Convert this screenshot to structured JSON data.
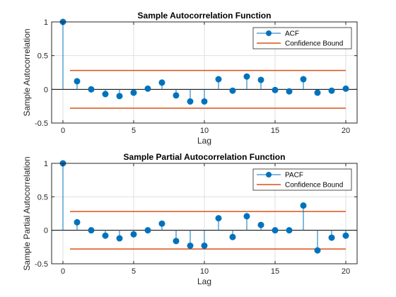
{
  "chart_data": [
    {
      "type": "stem",
      "title": "Sample Autocorrelation Function",
      "xlabel": "Lag",
      "ylabel": "Sample Autocorrelation",
      "xlim": [
        -0.8,
        20.8
      ],
      "ylim": [
        -0.5,
        1
      ],
      "xticks": [
        "0",
        "5",
        "10",
        "15",
        "20"
      ],
      "xtick_values": [
        0,
        5,
        10,
        15,
        20
      ],
      "yticks": [
        "-0.5",
        "0",
        "0.5",
        "1"
      ],
      "ytick_values": [
        -0.5,
        0,
        0.5,
        1
      ],
      "grid": true,
      "legend_position": "top-right",
      "x": [
        0,
        1,
        2,
        3,
        4,
        5,
        6,
        7,
        8,
        9,
        10,
        11,
        12,
        13,
        14,
        15,
        16,
        17,
        18,
        19,
        20
      ],
      "series": [
        {
          "name": "ACF",
          "color": "#0072BD",
          "values": [
            1,
            0.12,
            0.0,
            -0.07,
            -0.1,
            -0.05,
            0.01,
            0.1,
            -0.09,
            -0.18,
            -0.18,
            0.15,
            -0.02,
            0.19,
            0.14,
            -0.01,
            -0.03,
            0.15,
            -0.05,
            -0.02,
            0.01
          ]
        }
      ],
      "confidence_bound": {
        "name": "Confidence Bound",
        "color": "#D95319",
        "value": 0.28
      }
    },
    {
      "type": "stem",
      "title": "Sample Partial Autocorrelation Function",
      "xlabel": "Lag",
      "ylabel": "Sample Partial Autocorrelation",
      "xlim": [
        -0.8,
        20.8
      ],
      "ylim": [
        -0.5,
        1
      ],
      "xticks": [
        "0",
        "5",
        "10",
        "15",
        "20"
      ],
      "xtick_values": [
        0,
        5,
        10,
        15,
        20
      ],
      "yticks": [
        "-0.5",
        "0",
        "0.5",
        "1"
      ],
      "ytick_values": [
        -0.5,
        0,
        0.5,
        1
      ],
      "grid": true,
      "legend_position": "top-right",
      "x": [
        0,
        1,
        2,
        3,
        4,
        5,
        6,
        7,
        8,
        9,
        10,
        11,
        12,
        13,
        14,
        15,
        16,
        17,
        18,
        19,
        20
      ],
      "series": [
        {
          "name": "PACF",
          "color": "#0072BD",
          "values": [
            1,
            0.12,
            0.0,
            -0.08,
            -0.12,
            -0.06,
            0.0,
            0.1,
            -0.16,
            -0.23,
            -0.23,
            0.18,
            -0.1,
            0.21,
            0.08,
            -0.0,
            0.0,
            0.37,
            -0.3,
            -0.11,
            -0.08
          ]
        }
      ],
      "confidence_bound": {
        "name": "Confidence Bound",
        "color": "#D95319",
        "value": 0.28
      }
    }
  ]
}
